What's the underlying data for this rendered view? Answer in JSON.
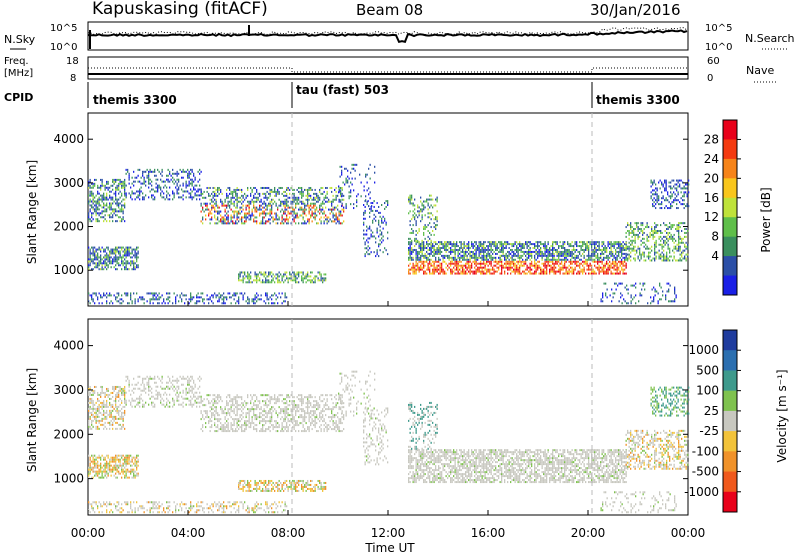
{
  "header": {
    "station": "Kapuskasing (fitACF)",
    "beam": "Beam 08",
    "date": "30/Jan/2016"
  },
  "panels": {
    "sky": {
      "left_label": "N.Sky",
      "right_label": "N.Search",
      "left_ticks": [
        "10^5",
        "10^0"
      ],
      "right_ticks": [
        "10^5",
        "10^0"
      ]
    },
    "freq": {
      "left_label": "Freq.",
      "left_units": "[MHz]",
      "right_label": "Nave",
      "left_ticks": [
        "18",
        "8"
      ],
      "right_ticks": [
        "60",
        "0"
      ]
    },
    "cpid": {
      "label": "CPID",
      "segments": [
        "themis 3300",
        "tau (fast) 503",
        "themis 3300"
      ]
    }
  },
  "colorbars": {
    "power": {
      "label": "Power [dB]",
      "ticks": [
        "28",
        "24",
        "20",
        "16",
        "12",
        "8",
        "4"
      ],
      "colors": [
        "#e8001a",
        "#f43a10",
        "#f6841a",
        "#f9c61c",
        "#bfe23a",
        "#5fbf4a",
        "#3a8f5e",
        "#2b4fa7",
        "#1a20e6"
      ]
    },
    "velocity": {
      "label": "Velocity [m s⁻¹]",
      "ticks": [
        "1000",
        "500",
        "100",
        "25",
        "-25",
        "-100",
        "-500",
        "-1000"
      ],
      "colors": [
        "#1f3c9e",
        "#2b6fb0",
        "#3e9a8c",
        "#7fc24e",
        "#c8c8c0",
        "#f2c33a",
        "#f0922a",
        "#f0591c",
        "#e8001a"
      ]
    }
  },
  "chart_data": [
    {
      "type": "heatmap",
      "name": "power",
      "ylabel": "Slant Range [km]",
      "xlim": [
        "00:00",
        "24:00"
      ],
      "ylim": [
        180,
        4600
      ],
      "yticks": [
        1000,
        2000,
        3000,
        4000
      ],
      "dashed_time_markers": [
        "08:00",
        "20:00"
      ]
    },
    {
      "type": "heatmap",
      "name": "velocity",
      "xlabel": "Time UT",
      "ylabel": "Slant Range [km]",
      "xlim": [
        "00:00",
        "24:00"
      ],
      "ylim": [
        180,
        4600
      ],
      "xticks": [
        "00:00",
        "04:00",
        "08:00",
        "12:00",
        "16:00",
        "20:00",
        "00:00"
      ],
      "yticks": [
        1000,
        2000,
        3000,
        4000
      ],
      "dashed_time_markers": [
        "08:00",
        "20:00"
      ]
    }
  ]
}
